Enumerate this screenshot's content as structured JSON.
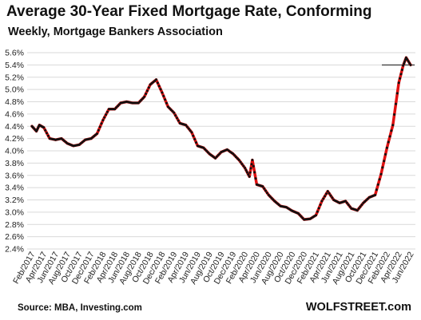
{
  "chart_data": {
    "type": "line",
    "title": "Average 30-Year Fixed Mortgage Rate, Conforming",
    "subtitle": "Weekly, Mortgage Bankers Association",
    "source": "Source: MBA,  Investing.com",
    "brand": "WOLFSTREET.com",
    "xlabel": "",
    "ylabel": "",
    "ylim": [
      2.4,
      5.6
    ],
    "yticks": [
      "2.4%",
      "2.6%",
      "2.8%",
      "3.0%",
      "3.2%",
      "3.4%",
      "3.6%",
      "3.8%",
      "4.0%",
      "4.2%",
      "4.4%",
      "4.6%",
      "4.8%",
      "5.0%",
      "5.2%",
      "5.4%",
      "5.6%"
    ],
    "xticks": [
      "Feb/2017",
      "Apr/2017",
      "Jun/2017",
      "Aug/2017",
      "Oct/2017",
      "Dec/2017",
      "Feb/2018",
      "Apr/2018",
      "Jun/2018",
      "Aug/2018",
      "Oct/2018",
      "Dec/2018",
      "Feb/2019",
      "Apr/2019",
      "Jun/2019",
      "Aug/2019",
      "Oct/2019",
      "Dec/2019",
      "Feb/2020",
      "Apr/2020",
      "Jun/2020",
      "Aug/2020",
      "Oct/2020",
      "Dec/2020",
      "Feb/2021",
      "Apr/2021",
      "Jun/2021",
      "Aug/2021",
      "Oct/2021",
      "Dec/2021",
      "Feb/2022",
      "Apr/2022",
      "Jun/2022"
    ],
    "grid": true,
    "reference_line": 5.4,
    "colors": {
      "line": "#e01010",
      "marker": "#111111",
      "grid": "#d9d9d9",
      "reference": "#111111"
    },
    "series": [
      {
        "points": [
          [
            "Feb/2017",
            4.4
          ],
          [
            "Mar/2017",
            4.32
          ],
          [
            "Mar/2017",
            4.42
          ],
          [
            "Apr/2017",
            4.38
          ],
          [
            "May/2017",
            4.2
          ],
          [
            "Jun/2017",
            4.18
          ],
          [
            "Jul/2017",
            4.2
          ],
          [
            "Aug/2017",
            4.12
          ],
          [
            "Sep/2017",
            4.08
          ],
          [
            "Oct/2017",
            4.1
          ],
          [
            "Nov/2017",
            4.18
          ],
          [
            "Dec/2017",
            4.2
          ],
          [
            "Jan/2018",
            4.28
          ],
          [
            "Feb/2018",
            4.5
          ],
          [
            "Mar/2018",
            4.68
          ],
          [
            "Apr/2018",
            4.68
          ],
          [
            "May/2018",
            4.78
          ],
          [
            "Jun/2018",
            4.8
          ],
          [
            "Jul/2018",
            4.78
          ],
          [
            "Aug/2018",
            4.78
          ],
          [
            "Sep/2018",
            4.88
          ],
          [
            "Oct/2018",
            5.08
          ],
          [
            "Nov/2018",
            5.16
          ],
          [
            "Dec/2018",
            4.95
          ],
          [
            "Jan/2019",
            4.72
          ],
          [
            "Feb/2019",
            4.62
          ],
          [
            "Mar/2019",
            4.45
          ],
          [
            "Apr/2019",
            4.42
          ],
          [
            "May/2019",
            4.3
          ],
          [
            "Jun/2019",
            4.08
          ],
          [
            "Jul/2019",
            4.05
          ],
          [
            "Aug/2019",
            3.95
          ],
          [
            "Sep/2019",
            3.88
          ],
          [
            "Oct/2019",
            3.98
          ],
          [
            "Nov/2019",
            4.02
          ],
          [
            "Dec/2019",
            3.95
          ],
          [
            "Jan/2020",
            3.85
          ],
          [
            "Feb/2020",
            3.72
          ],
          [
            "Mar/2020",
            3.58
          ],
          [
            "Mar/2020",
            3.85
          ],
          [
            "Apr/2020",
            3.45
          ],
          [
            "May/2020",
            3.42
          ],
          [
            "Jun/2020",
            3.28
          ],
          [
            "Jul/2020",
            3.18
          ],
          [
            "Aug/2020",
            3.1
          ],
          [
            "Sep/2020",
            3.08
          ],
          [
            "Oct/2020",
            3.02
          ],
          [
            "Nov/2020",
            2.98
          ],
          [
            "Dec/2020",
            2.88
          ],
          [
            "Jan/2021",
            2.89
          ],
          [
            "Feb/2021",
            2.95
          ],
          [
            "Mar/2021",
            3.18
          ],
          [
            "Apr/2021",
            3.34
          ],
          [
            "May/2021",
            3.2
          ],
          [
            "Jun/2021",
            3.15
          ],
          [
            "Jul/2021",
            3.18
          ],
          [
            "Aug/2021",
            3.06
          ],
          [
            "Sep/2021",
            3.03
          ],
          [
            "Oct/2021",
            3.15
          ],
          [
            "Nov/2021",
            3.24
          ],
          [
            "Dec/2021",
            3.28
          ],
          [
            "Jan/2022",
            3.62
          ],
          [
            "Feb/2022",
            4.05
          ],
          [
            "Mar/2022",
            4.42
          ],
          [
            "Apr/2022",
            5.11
          ],
          [
            "May/2022",
            5.39
          ],
          [
            "May/2022",
            5.52
          ],
          [
            "Jun/2022",
            5.4
          ]
        ]
      }
    ]
  }
}
